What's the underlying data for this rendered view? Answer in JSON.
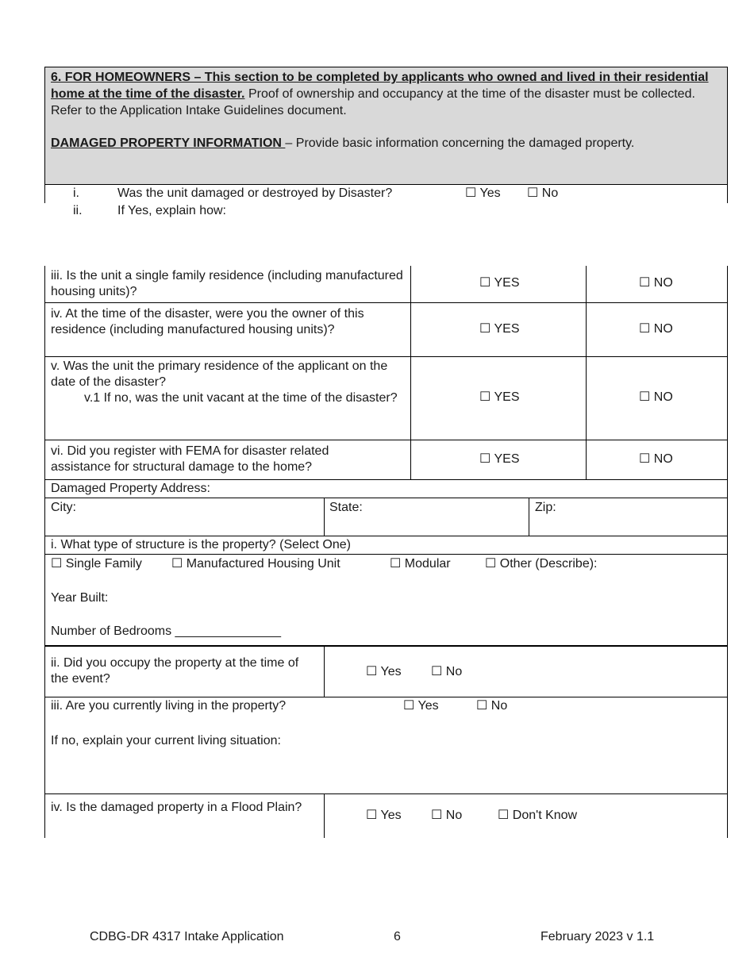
{
  "header": {
    "title_bold": "6. FOR HOMEOWNERS – This section to be completed by applicants who owned and lived in their residential home at the time of the disaster.",
    "title_rest": " Proof of ownership and occupancy at the time of the disaster must be collected. Refer to the Application Intake Guidelines document.",
    "subhead_bold": "DAMAGED PROPERTY INFORMATION ",
    "subhead_rest": "– Provide basic information concerning the damaged property."
  },
  "q_i": {
    "num": "i.",
    "text": "Was the unit damaged or destroyed by Disaster?",
    "yes": "☐ Yes",
    "no": "☐ No"
  },
  "q_ii": {
    "num": "ii.",
    "text": "If Yes, explain how:"
  },
  "table1": [
    {
      "text": "iii. Is the unit a single family residence (including manufactured housing units)?",
      "yes": "☐ YES",
      "no": "☐ NO"
    },
    {
      "text": "iv. At the time of the disaster, were you the owner of this residence (including manufactured housing units)?",
      "yes": "☐ YES",
      "no": "☐ NO"
    },
    {
      "text": "v. Was the unit the primary residence of the applicant on the date of the disaster?",
      "sub": "v.1 If no, was the unit vacant at the time of the disaster?",
      "yes": "☐ YES",
      "no": "☐ NO"
    },
    {
      "text": "vi. Did you register with FEMA for disaster related assistance for structural damage to the home?",
      "yes": "☐ YES",
      "no": "☐ NO"
    }
  ],
  "address": {
    "label": "Damaged Property Address:",
    "city": "City:",
    "state": "State:",
    "zip": "Zip:"
  },
  "structure": {
    "question": "i. What type of structure is the property? (Select One)",
    "options": [
      "☐ Single Family",
      "☐ Manufactured Housing Unit",
      "☐ Modular",
      "☐ Other (Describe):"
    ],
    "year_built": "Year Built:",
    "bedrooms": "Number of Bedrooms _______________"
  },
  "occupy": {
    "question": "ii. Did you occupy the property at the time of the event?",
    "yes": "☐  Yes",
    "no": "☐ No"
  },
  "living": {
    "question": "iii. Are you currently living in the property?",
    "yes": "☐ Yes",
    "no": "☐ No",
    "explain": "If no, explain your current living situation:"
  },
  "flood": {
    "question": "iv. Is the damaged property in a Flood Plain?",
    "yes": "☐ Yes",
    "no": "☐ No",
    "dontknow": "☐ Don't Know"
  },
  "footer": {
    "left": "CDBG-DR 4317 Intake Application",
    "page": "6",
    "right": "February 2023 v 1.1"
  }
}
